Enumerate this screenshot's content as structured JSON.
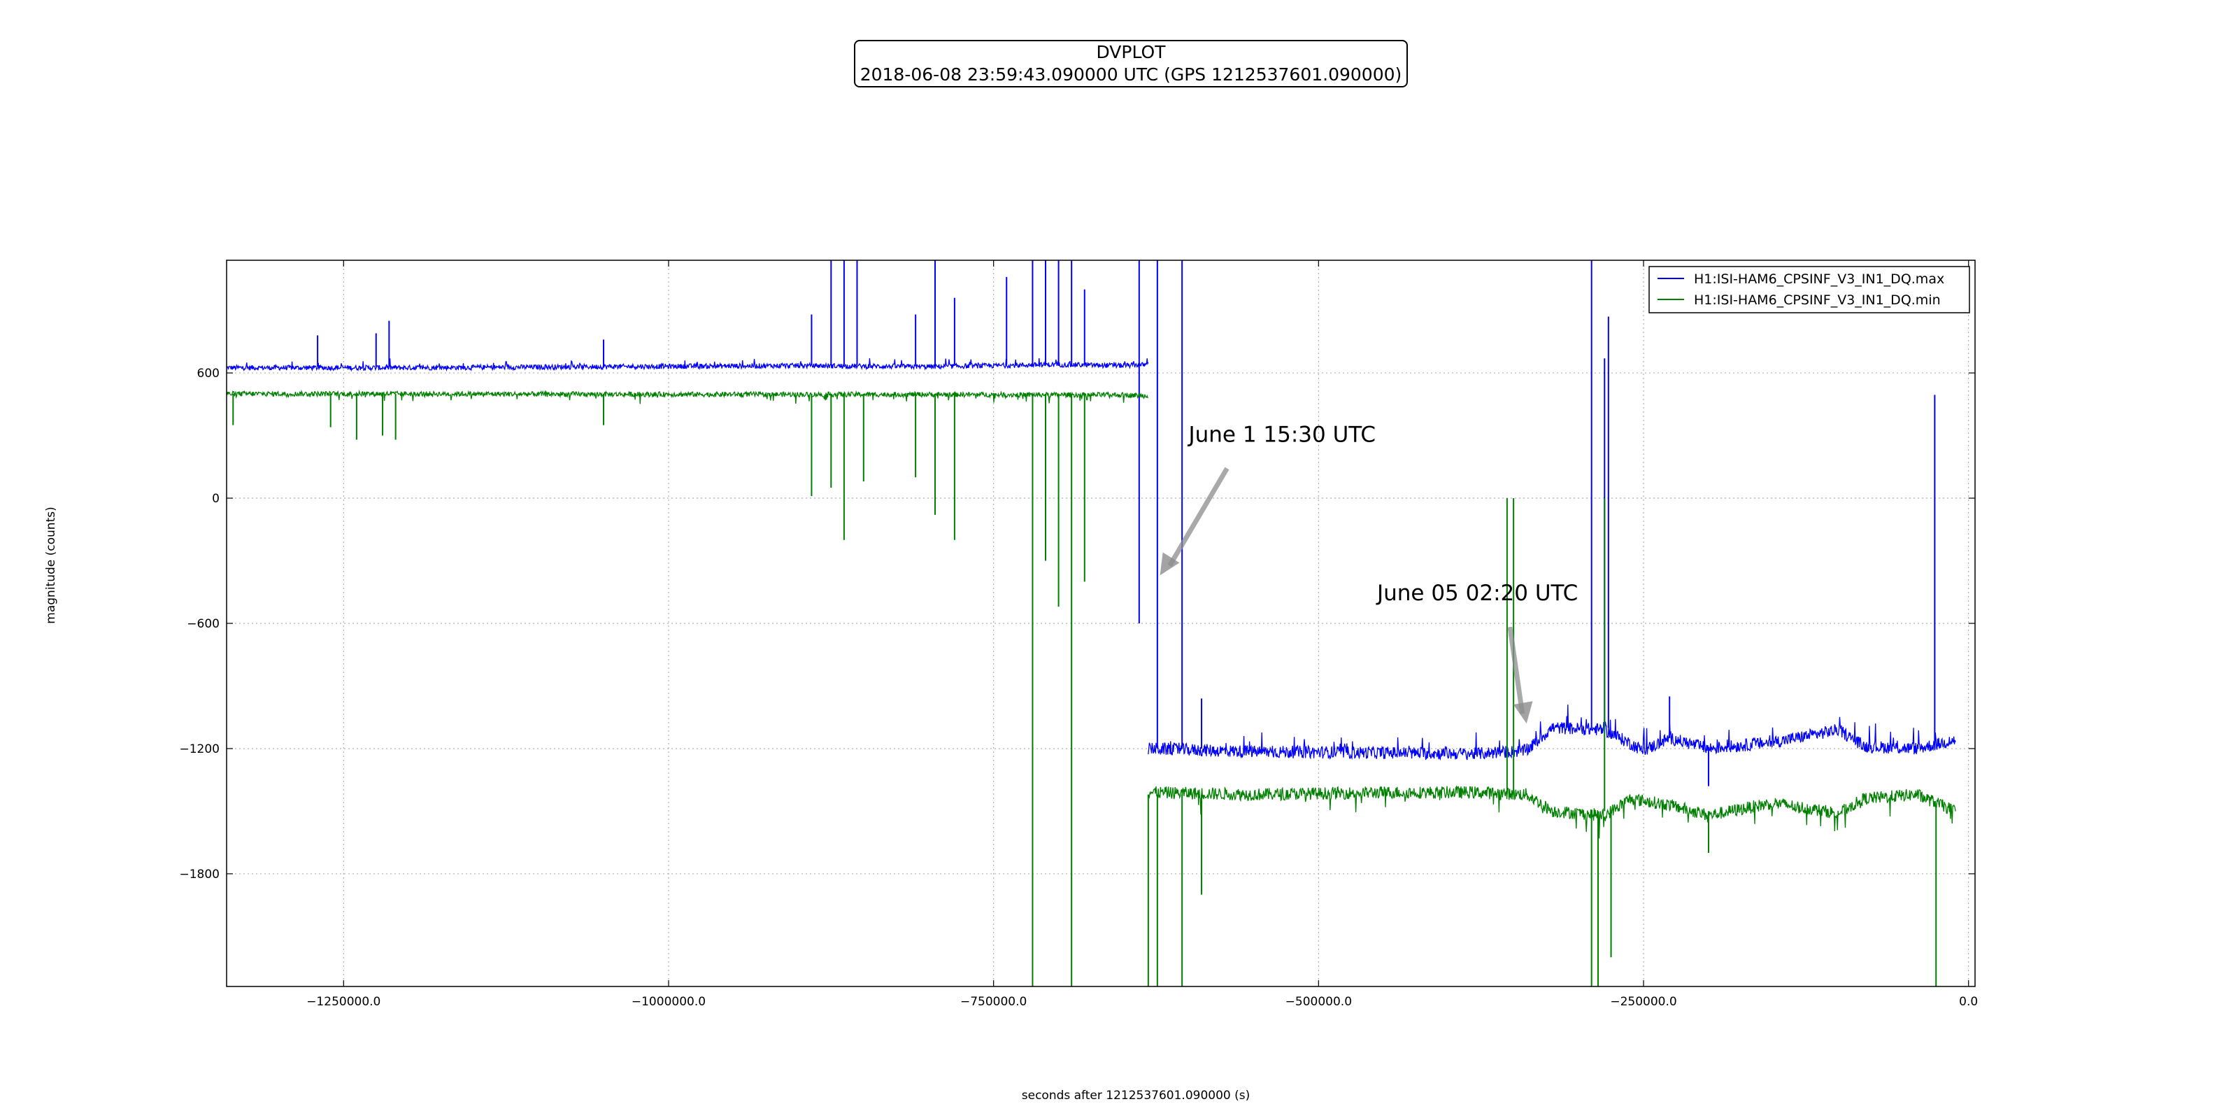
{
  "chart_data": {
    "type": "line",
    "title": "DVPLOT",
    "subtitle": "2018-06-08 23:59:43.090000 UTC (GPS 1212537601.090000)",
    "xlabel": "seconds after 1212537601.090000 (s)",
    "ylabel": "magnitude (counts)",
    "xlim": [
      -1340000,
      5000
    ],
    "ylim": [
      -2340,
      1140
    ],
    "xticks": [
      -1250000,
      -1000000,
      -750000,
      -500000,
      -250000,
      0
    ],
    "xtick_labels": [
      "−1250000.0",
      "−1000000.0",
      "−750000.0",
      "−500000.0",
      "−250000.0",
      "0.0"
    ],
    "yticks": [
      600,
      0,
      -600,
      -1200,
      -1800
    ],
    "ytick_labels": [
      "600",
      "0",
      "−600",
      "−1200",
      "−1800"
    ],
    "grid": true,
    "legend_position": "top-right",
    "series": [
      {
        "name": "H1:ISI-HAM6_CPSINF_V3_IN1_DQ.max",
        "color": "#0000ff",
        "segments": [
          {
            "x": [
              -1340000,
              -1200000,
              -1050000,
              -900000,
              -800000,
              -700000,
              -650000,
              -631000
            ],
            "y": [
              625,
              625,
              630,
              635,
              630,
              640,
              635,
              640
            ]
          },
          {
            "x": [
              -631000,
              -550000,
              -450000,
              -380000,
              -340000,
              -320000,
              -280000,
              -250000,
              -230000,
              -200000,
              -150000,
              -100000,
              -80000,
              -40000,
              -10000
            ],
            "y": [
              -1200,
              -1215,
              -1220,
              -1225,
              -1210,
              -1100,
              -1110,
              -1210,
              -1150,
              -1200,
              -1170,
              -1110,
              -1190,
              -1200,
              -1160
            ]
          }
        ],
        "spikes": [
          {
            "x": -1215000,
            "y0": 630,
            "y1": 850
          },
          {
            "x": -1225000,
            "y0": 630,
            "y1": 790
          },
          {
            "x": -1270000,
            "y0": 630,
            "y1": 780
          },
          {
            "x": -1050000,
            "y0": 630,
            "y1": 760
          },
          {
            "x": -875000,
            "y0": 640,
            "y1": 1140
          },
          {
            "x": -865000,
            "y0": 640,
            "y1": 1140
          },
          {
            "x": -855000,
            "y0": 640,
            "y1": 1140
          },
          {
            "x": -890000,
            "y0": 640,
            "y1": 880
          },
          {
            "x": -795000,
            "y0": 640,
            "y1": 1140
          },
          {
            "x": -780000,
            "y0": 640,
            "y1": 960
          },
          {
            "x": -810000,
            "y0": 640,
            "y1": 880
          },
          {
            "x": -740000,
            "y0": 640,
            "y1": 1060
          },
          {
            "x": -720000,
            "y0": 640,
            "y1": 1140
          },
          {
            "x": -710000,
            "y0": 640,
            "y1": 1140
          },
          {
            "x": -700000,
            "y0": 640,
            "y1": 1140
          },
          {
            "x": -690000,
            "y0": 640,
            "y1": 1140
          },
          {
            "x": -680000,
            "y0": 640,
            "y1": 1000
          },
          {
            "x": -638000,
            "y0": -600,
            "y1": 1140
          },
          {
            "x": -624000,
            "y0": -1200,
            "y1": 1140
          },
          {
            "x": -605000,
            "y0": -1200,
            "y1": 1140
          },
          {
            "x": -590000,
            "y0": -1200,
            "y1": -960
          },
          {
            "x": -290000,
            "y0": -1100,
            "y1": 1140
          },
          {
            "x": -280000,
            "y0": -1100,
            "y1": 670
          },
          {
            "x": -277000,
            "y0": -1100,
            "y1": 870
          },
          {
            "x": -230000,
            "y0": -1150,
            "y1": -950
          },
          {
            "x": -200000,
            "y0": -1200,
            "y1": -1380
          },
          {
            "x": -26000,
            "y0": -1200,
            "y1": 495
          }
        ]
      },
      {
        "name": "H1:ISI-HAM6_CPSINF_V3_IN1_DQ.min",
        "color": "#008000",
        "segments": [
          {
            "x": [
              -1340000,
              -1200000,
              -1050000,
              -900000,
              -800000,
              -700000,
              -650000,
              -631000
            ],
            "y": [
              500,
              500,
              498,
              497,
              497,
              495,
              495,
              490
            ]
          },
          {
            "x": [
              -631000,
              -550000,
              -450000,
              -380000,
              -340000,
              -320000,
              -280000,
              -260000,
              -230000,
              -200000,
              -150000,
              -100000,
              -80000,
              -40000,
              -10000
            ],
            "y": [
              -1410,
              -1420,
              -1410,
              -1410,
              -1420,
              -1500,
              -1520,
              -1440,
              -1470,
              -1520,
              -1460,
              -1510,
              -1440,
              -1420,
              -1500
            ]
          }
        ],
        "spikes": [
          {
            "x": -1335000,
            "y0": 500,
            "y1": 350
          },
          {
            "x": -1210000,
            "y0": 500,
            "y1": 280
          },
          {
            "x": -1220000,
            "y0": 500,
            "y1": 300
          },
          {
            "x": -1240000,
            "y0": 500,
            "y1": 280
          },
          {
            "x": -1260000,
            "y0": 500,
            "y1": 340
          },
          {
            "x": -1050000,
            "y0": 500,
            "y1": 350
          },
          {
            "x": -890000,
            "y0": 500,
            "y1": 10
          },
          {
            "x": -875000,
            "y0": 500,
            "y1": 50
          },
          {
            "x": -865000,
            "y0": 500,
            "y1": -200
          },
          {
            "x": -850000,
            "y0": 500,
            "y1": 80
          },
          {
            "x": -795000,
            "y0": 500,
            "y1": -80
          },
          {
            "x": -780000,
            "y0": 500,
            "y1": -200
          },
          {
            "x": -810000,
            "y0": 500,
            "y1": 100
          },
          {
            "x": -720000,
            "y0": 500,
            "y1": -2340
          },
          {
            "x": -710000,
            "y0": 500,
            "y1": -300
          },
          {
            "x": -700000,
            "y0": 500,
            "y1": -520
          },
          {
            "x": -690000,
            "y0": 500,
            "y1": -2340
          },
          {
            "x": -680000,
            "y0": 500,
            "y1": -400
          },
          {
            "x": -631000,
            "y0": -1420,
            "y1": -2340
          },
          {
            "x": -624000,
            "y0": -1420,
            "y1": -2340
          },
          {
            "x": -605000,
            "y0": -1420,
            "y1": -2340
          },
          {
            "x": -590000,
            "y0": -1420,
            "y1": -1900
          },
          {
            "x": -355000,
            "y0": -1410,
            "y1": 0
          },
          {
            "x": -350000,
            "y0": -1410,
            "y1": 0
          },
          {
            "x": -290000,
            "y0": -1500,
            "y1": -2340
          },
          {
            "x": -285000,
            "y0": -1500,
            "y1": -2340
          },
          {
            "x": -280000,
            "y0": -1500,
            "y1": 0
          },
          {
            "x": -275000,
            "y0": -1500,
            "y1": -2200
          },
          {
            "x": -200000,
            "y0": -1500,
            "y1": -1700
          },
          {
            "x": -25000,
            "y0": -1480,
            "y1": -2340
          }
        ]
      }
    ],
    "annotations": [
      {
        "text": "June 1 15:30 UTC",
        "text_x": -600000,
        "text_y": 270,
        "arrow_x": -622000,
        "arrow_y": -370
      },
      {
        "text": "June 05 02:20 UTC",
        "text_x": -455000,
        "text_y": -490,
        "arrow_x": -340000,
        "arrow_y": -1080
      }
    ]
  }
}
